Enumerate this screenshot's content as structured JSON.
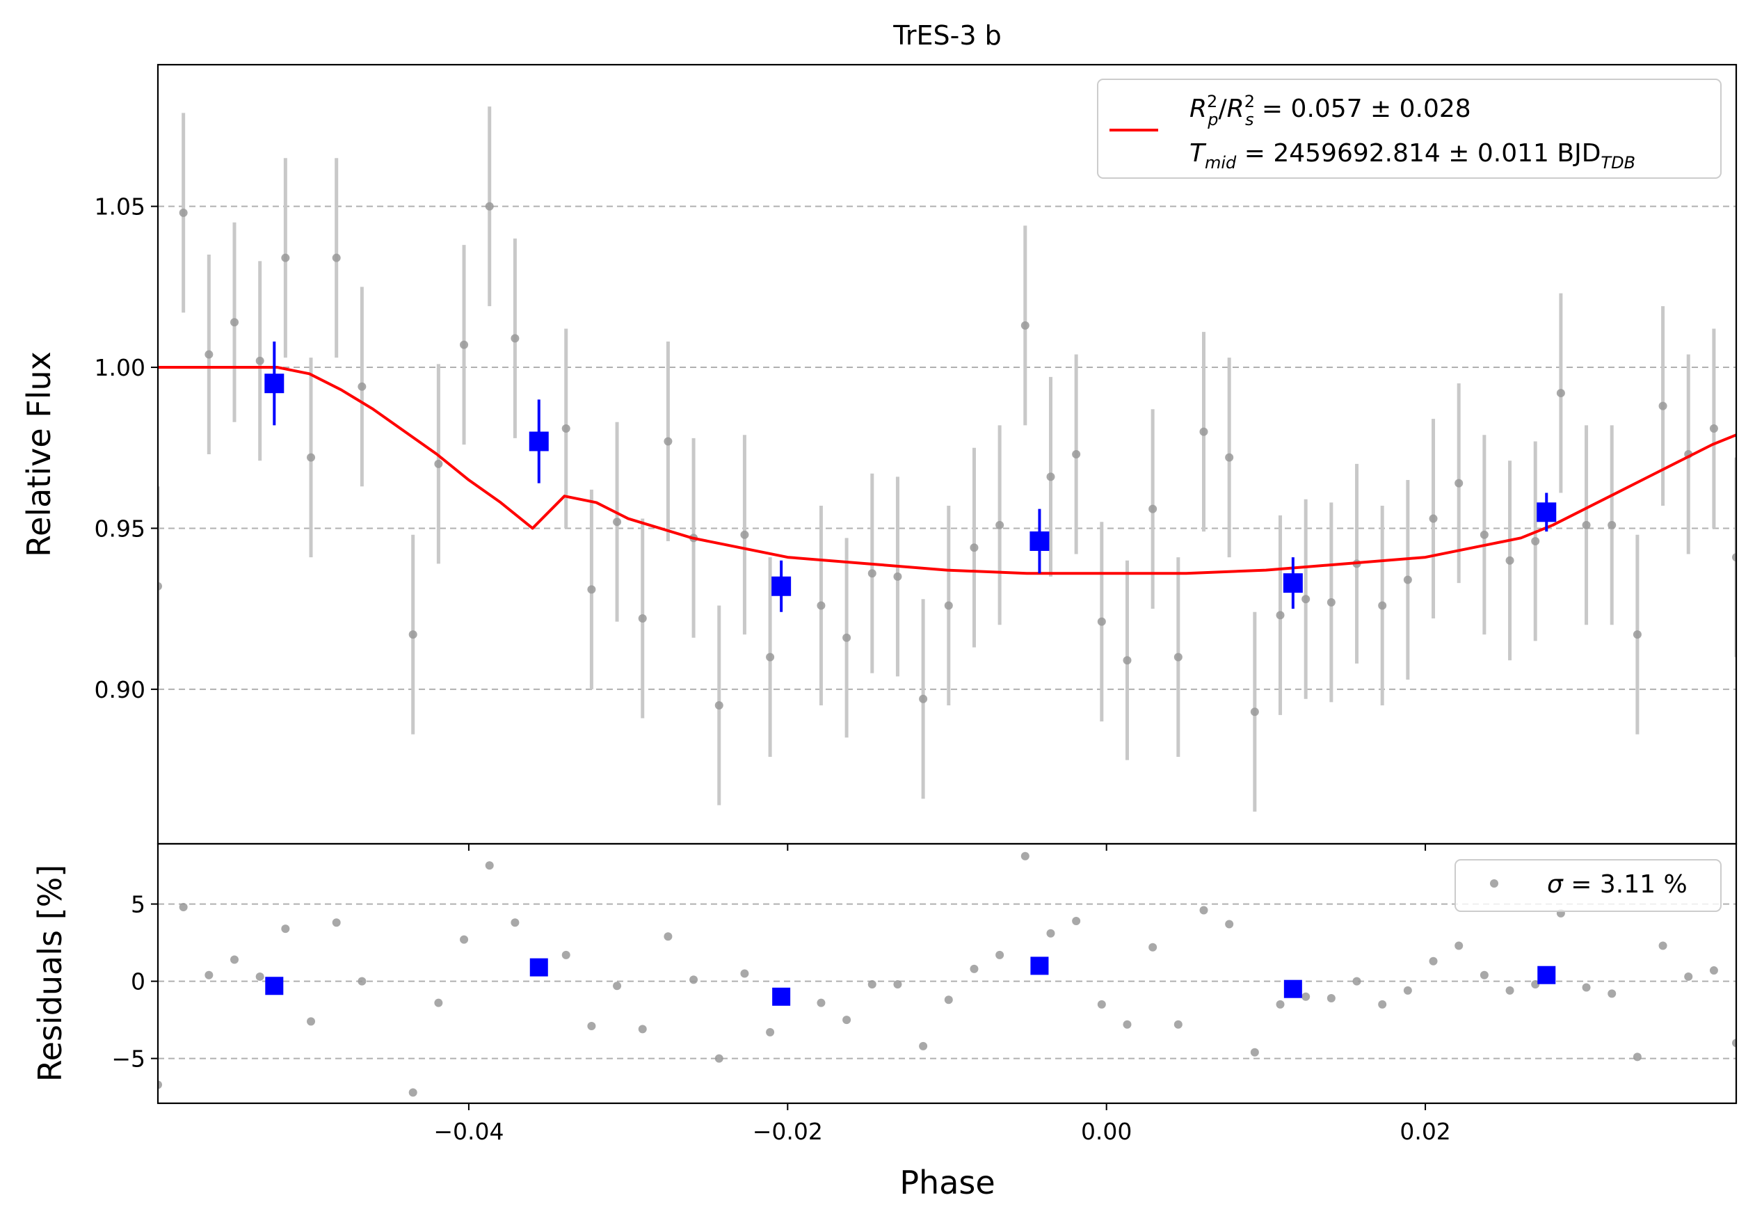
{
  "chart_data": {
    "type": "scatter",
    "title": "TrES-3 b",
    "xlabel": "Phase",
    "xlim": [
      -0.0595,
      0.0395
    ],
    "xticks": [
      -0.04,
      -0.02,
      0.0,
      0.02
    ],
    "xtick_labels": [
      "−0.04",
      "−0.02",
      "0.00",
      "0.02"
    ],
    "grid": "horizontal dashed",
    "colors": {
      "raw": "#999999",
      "raw_err": "#c8c8c8",
      "binned": "#0000ff",
      "model": "#ff0000",
      "grid": "#b0b0b0"
    },
    "top_panel": {
      "ylabel": "Relative Flux",
      "ylim": [
        0.852,
        1.094
      ],
      "yticks": [
        0.9,
        0.95,
        1.0,
        1.05
      ],
      "ytick_labels": [
        "0.90",
        "0.95",
        "1.00",
        "1.05"
      ],
      "legend": {
        "placement": "upper right",
        "line1_symbol": "R",
        "line1_sub_p": "p",
        "line1_sub_s": "s",
        "line1_sup": "2",
        "line1_slash": "/",
        "line1_value": " = 0.057 ± 0.028",
        "line2_symbol": "T",
        "line2_sub": "mid",
        "line2_value": " = 2459692.814 ± 0.011 BJD",
        "line2_unit_sub": "TDB"
      },
      "raw_points": [
        {
          "x": -0.0595,
          "y": 0.932,
          "err": 0.031
        },
        {
          "x": -0.0579,
          "y": 1.048,
          "err": 0.031
        },
        {
          "x": -0.0563,
          "y": 1.004,
          "err": 0.031
        },
        {
          "x": -0.0547,
          "y": 1.014,
          "err": 0.031
        },
        {
          "x": -0.0531,
          "y": 1.002,
          "err": 0.031
        },
        {
          "x": -0.0515,
          "y": 1.034,
          "err": 0.031
        },
        {
          "x": -0.0499,
          "y": 0.972,
          "err": 0.031
        },
        {
          "x": -0.0483,
          "y": 1.034,
          "err": 0.031
        },
        {
          "x": -0.0467,
          "y": 0.994,
          "err": 0.031
        },
        {
          "x": -0.0435,
          "y": 0.917,
          "err": 0.031
        },
        {
          "x": -0.0419,
          "y": 0.97,
          "err": 0.031
        },
        {
          "x": -0.0403,
          "y": 1.007,
          "err": 0.031
        },
        {
          "x": -0.0387,
          "y": 1.05,
          "err": 0.031
        },
        {
          "x": -0.0371,
          "y": 1.009,
          "err": 0.031
        },
        {
          "x": -0.0339,
          "y": 0.981,
          "err": 0.031
        },
        {
          "x": -0.0323,
          "y": 0.931,
          "err": 0.031
        },
        {
          "x": -0.0307,
          "y": 0.952,
          "err": 0.031
        },
        {
          "x": -0.0291,
          "y": 0.922,
          "err": 0.031
        },
        {
          "x": -0.0275,
          "y": 0.977,
          "err": 0.031
        },
        {
          "x": -0.0259,
          "y": 0.947,
          "err": 0.031
        },
        {
          "x": -0.0243,
          "y": 0.895,
          "err": 0.031
        },
        {
          "x": -0.0227,
          "y": 0.948,
          "err": 0.031
        },
        {
          "x": -0.0211,
          "y": 0.91,
          "err": 0.031
        },
        {
          "x": -0.0179,
          "y": 0.926,
          "err": 0.031
        },
        {
          "x": -0.0163,
          "y": 0.916,
          "err": 0.031
        },
        {
          "x": -0.0147,
          "y": 0.936,
          "err": 0.031
        },
        {
          "x": -0.0131,
          "y": 0.935,
          "err": 0.031
        },
        {
          "x": -0.0115,
          "y": 0.897,
          "err": 0.031
        },
        {
          "x": -0.0099,
          "y": 0.926,
          "err": 0.031
        },
        {
          "x": -0.0083,
          "y": 0.944,
          "err": 0.031
        },
        {
          "x": -0.0067,
          "y": 0.951,
          "err": 0.031
        },
        {
          "x": -0.0051,
          "y": 1.013,
          "err": 0.031
        },
        {
          "x": -0.0035,
          "y": 0.966,
          "err": 0.031
        },
        {
          "x": -0.0019,
          "y": 0.973,
          "err": 0.031
        },
        {
          "x": -0.0003,
          "y": 0.921,
          "err": 0.031
        },
        {
          "x": 0.0013,
          "y": 0.909,
          "err": 0.031
        },
        {
          "x": 0.0029,
          "y": 0.956,
          "err": 0.031
        },
        {
          "x": 0.0045,
          "y": 0.91,
          "err": 0.031
        },
        {
          "x": 0.0061,
          "y": 0.98,
          "err": 0.031
        },
        {
          "x": 0.0077,
          "y": 0.972,
          "err": 0.031
        },
        {
          "x": 0.0093,
          "y": 0.893,
          "err": 0.031
        },
        {
          "x": 0.0109,
          "y": 0.923,
          "err": 0.031
        },
        {
          "x": 0.0125,
          "y": 0.928,
          "err": 0.031
        },
        {
          "x": 0.0141,
          "y": 0.927,
          "err": 0.031
        },
        {
          "x": 0.0157,
          "y": 0.939,
          "err": 0.031
        },
        {
          "x": 0.0173,
          "y": 0.926,
          "err": 0.031
        },
        {
          "x": 0.0189,
          "y": 0.934,
          "err": 0.031
        },
        {
          "x": 0.0205,
          "y": 0.953,
          "err": 0.031
        },
        {
          "x": 0.0221,
          "y": 0.964,
          "err": 0.031
        },
        {
          "x": 0.0237,
          "y": 0.948,
          "err": 0.031
        },
        {
          "x": 0.0253,
          "y": 0.94,
          "err": 0.031
        },
        {
          "x": 0.0269,
          "y": 0.946,
          "err": 0.031
        },
        {
          "x": 0.0285,
          "y": 0.992,
          "err": 0.031
        },
        {
          "x": 0.0301,
          "y": 0.951,
          "err": 0.031
        },
        {
          "x": 0.0317,
          "y": 0.951,
          "err": 0.031
        },
        {
          "x": 0.0333,
          "y": 0.917,
          "err": 0.031
        },
        {
          "x": 0.0349,
          "y": 0.988,
          "err": 0.031
        },
        {
          "x": 0.0365,
          "y": 0.973,
          "err": 0.031
        },
        {
          "x": 0.0381,
          "y": 0.981,
          "err": 0.031
        },
        {
          "x": 0.0395,
          "y": 0.941,
          "err": 0.031
        }
      ],
      "binned_points": [
        {
          "x": -0.0522,
          "y": 0.995,
          "err": 0.013
        },
        {
          "x": -0.0356,
          "y": 0.977,
          "err": 0.013
        },
        {
          "x": -0.0204,
          "y": 0.932,
          "err": 0.008
        },
        {
          "x": -0.0042,
          "y": 0.946,
          "err": 0.01
        },
        {
          "x": 0.0117,
          "y": 0.933,
          "err": 0.008
        },
        {
          "x": 0.0276,
          "y": 0.955,
          "err": 0.006
        }
      ],
      "model_curve": [
        {
          "x": -0.0595,
          "y": 1.0
        },
        {
          "x": -0.052,
          "y": 1.0
        },
        {
          "x": -0.05,
          "y": 0.998
        },
        {
          "x": -0.048,
          "y": 0.993
        },
        {
          "x": -0.046,
          "y": 0.987
        },
        {
          "x": -0.044,
          "y": 0.98
        },
        {
          "x": -0.042,
          "y": 0.973
        },
        {
          "x": -0.04,
          "y": 0.965
        },
        {
          "x": -0.038,
          "y": 0.958
        },
        {
          "x": -0.036,
          "y": 0.95
        },
        {
          "x": -0.034,
          "y": 0.96
        },
        {
          "x": -0.032,
          "y": 0.958
        },
        {
          "x": -0.03,
          "y": 0.953
        },
        {
          "x": -0.028,
          "y": 0.95
        },
        {
          "x": -0.026,
          "y": 0.947
        },
        {
          "x": -0.024,
          "y": 0.945
        },
        {
          "x": -0.02,
          "y": 0.941
        },
        {
          "x": -0.015,
          "y": 0.939
        },
        {
          "x": -0.01,
          "y": 0.937
        },
        {
          "x": -0.005,
          "y": 0.936
        },
        {
          "x": 0.0,
          "y": 0.936
        },
        {
          "x": 0.005,
          "y": 0.936
        },
        {
          "x": 0.01,
          "y": 0.937
        },
        {
          "x": 0.015,
          "y": 0.939
        },
        {
          "x": 0.02,
          "y": 0.941
        },
        {
          "x": 0.024,
          "y": 0.945
        },
        {
          "x": 0.026,
          "y": 0.947
        },
        {
          "x": 0.028,
          "y": 0.951
        },
        {
          "x": 0.03,
          "y": 0.956
        },
        {
          "x": 0.032,
          "y": 0.961
        },
        {
          "x": 0.034,
          "y": 0.966
        },
        {
          "x": 0.036,
          "y": 0.971
        },
        {
          "x": 0.038,
          "y": 0.976
        },
        {
          "x": 0.0395,
          "y": 0.979
        }
      ]
    },
    "bottom_panel": {
      "ylabel": "Residuals [%]",
      "ylim": [
        -7.9,
        8.9
      ],
      "yticks": [
        -5,
        0,
        5
      ],
      "ytick_labels": [
        "−5",
        "0",
        "5"
      ],
      "legend": {
        "placement": "upper right",
        "symbol": "σ",
        "value": " = 3.11 %"
      },
      "raw_points": [
        {
          "x": -0.0595,
          "y": -6.7
        },
        {
          "x": -0.0579,
          "y": 4.8
        },
        {
          "x": -0.0563,
          "y": 0.4
        },
        {
          "x": -0.0547,
          "y": 1.4
        },
        {
          "x": -0.0531,
          "y": 0.3
        },
        {
          "x": -0.0515,
          "y": 3.4
        },
        {
          "x": -0.0499,
          "y": -2.6
        },
        {
          "x": -0.0483,
          "y": 3.8
        },
        {
          "x": -0.0467,
          "y": 0.0
        },
        {
          "x": -0.0435,
          "y": -7.2
        },
        {
          "x": -0.0419,
          "y": -1.4
        },
        {
          "x": -0.0403,
          "y": 2.7
        },
        {
          "x": -0.0387,
          "y": 7.5
        },
        {
          "x": -0.0371,
          "y": 3.8
        },
        {
          "x": -0.0339,
          "y": 1.7
        },
        {
          "x": -0.0323,
          "y": -2.9
        },
        {
          "x": -0.0307,
          "y": -0.3
        },
        {
          "x": -0.0291,
          "y": -3.1
        },
        {
          "x": -0.0275,
          "y": 2.9
        },
        {
          "x": -0.0259,
          "y": 0.1
        },
        {
          "x": -0.0243,
          "y": -5.0
        },
        {
          "x": -0.0227,
          "y": 0.5
        },
        {
          "x": -0.0211,
          "y": -3.3
        },
        {
          "x": -0.0179,
          "y": -1.4
        },
        {
          "x": -0.0163,
          "y": -2.5
        },
        {
          "x": -0.0147,
          "y": -0.2
        },
        {
          "x": -0.0131,
          "y": -0.2
        },
        {
          "x": -0.0115,
          "y": -4.2
        },
        {
          "x": -0.0099,
          "y": -1.2
        },
        {
          "x": -0.0083,
          "y": 0.8
        },
        {
          "x": -0.0067,
          "y": 1.7
        },
        {
          "x": -0.0051,
          "y": 8.1
        },
        {
          "x": -0.0035,
          "y": 3.1
        },
        {
          "x": -0.0019,
          "y": 3.9
        },
        {
          "x": -0.0003,
          "y": -1.5
        },
        {
          "x": 0.0013,
          "y": -2.8
        },
        {
          "x": 0.0029,
          "y": 2.2
        },
        {
          "x": 0.0045,
          "y": -2.8
        },
        {
          "x": 0.0061,
          "y": 4.6
        },
        {
          "x": 0.0077,
          "y": 3.7
        },
        {
          "x": 0.0093,
          "y": -4.6
        },
        {
          "x": 0.0109,
          "y": -1.5
        },
        {
          "x": 0.0125,
          "y": -1.0
        },
        {
          "x": 0.0141,
          "y": -1.1
        },
        {
          "x": 0.0157,
          "y": 0.0
        },
        {
          "x": 0.0173,
          "y": -1.5
        },
        {
          "x": 0.0189,
          "y": -0.6
        },
        {
          "x": 0.0205,
          "y": 1.3
        },
        {
          "x": 0.0221,
          "y": 2.3
        },
        {
          "x": 0.0237,
          "y": 0.4
        },
        {
          "x": 0.0253,
          "y": -0.6
        },
        {
          "x": 0.0269,
          "y": -0.2
        },
        {
          "x": 0.0285,
          "y": 4.4
        },
        {
          "x": 0.0301,
          "y": -0.4
        },
        {
          "x": 0.0317,
          "y": -0.8
        },
        {
          "x": 0.0333,
          "y": -4.9
        },
        {
          "x": 0.0349,
          "y": 2.3
        },
        {
          "x": 0.0365,
          "y": 0.3
        },
        {
          "x": 0.0381,
          "y": 0.7
        },
        {
          "x": 0.0395,
          "y": -4.0
        }
      ],
      "binned_points": [
        {
          "x": -0.0522,
          "y": -0.3
        },
        {
          "x": -0.0356,
          "y": 0.9
        },
        {
          "x": -0.0204,
          "y": -1.0
        },
        {
          "x": -0.0042,
          "y": 1.0
        },
        {
          "x": 0.0117,
          "y": -0.5
        },
        {
          "x": 0.0276,
          "y": 0.4
        }
      ]
    }
  }
}
